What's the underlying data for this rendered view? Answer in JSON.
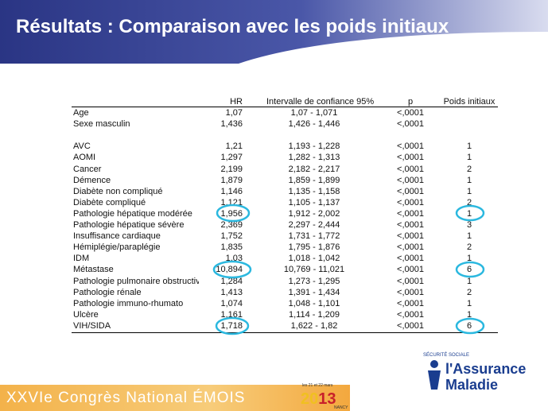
{
  "header": {
    "title": "Résultats : Comparaison avec les poids initiaux"
  },
  "table": {
    "columns": [
      "HR",
      "Intervalle de confiance 95%",
      "p",
      "Poids initiaux"
    ],
    "groups": [
      [
        [
          "Age",
          "1,07",
          "1,07  -  1,071",
          "<,0001"
        ],
        [
          "Sexe masculin",
          "1,436",
          "1,426  -  1,446",
          "<,0001"
        ]
      ],
      [
        [
          "AVC",
          "1,21",
          "1,193  -  1,228",
          "<,0001",
          "1"
        ],
        [
          "AOMI",
          "1,297",
          "1,282  -  1,313",
          "<,0001",
          "1"
        ],
        [
          "Cancer",
          "2,199",
          "2,182  -  2,217",
          "<,0001",
          "2"
        ],
        [
          "Démence",
          "1,879",
          "1,859  -  1,899",
          "<,0001",
          "1"
        ],
        [
          "Diabète non compliqué",
          "1,146",
          "1,135  -  1,158",
          "<,0001",
          "1"
        ],
        [
          "Diabète compliqué",
          "1,121",
          "1,105  -  1,137",
          "<,0001",
          "2"
        ],
        [
          "Pathologie hépatique modérée",
          "1,956",
          "1,912  -  2,002",
          "<,0001",
          "1"
        ],
        [
          "Pathologie hépatique sévère",
          "2,369",
          "2,297  -  2,444",
          "<,0001",
          "3"
        ],
        [
          "Insuffisance cardiaque",
          "1,752",
          "1,731  -  1,772",
          "<,0001",
          "1"
        ],
        [
          "Hémiplégie/paraplégie",
          "1,835",
          "1,795  -  1,876",
          "<,0001",
          "2"
        ],
        [
          "IDM",
          "1,03",
          "1,018  -  1,042",
          "<,0001",
          "1"
        ],
        [
          "Métastase",
          "10,894",
          "10,769  -  11,021",
          "<,0001",
          "6"
        ],
        [
          "Pathologie pulmonaire obstructiv",
          "1,284",
          "1,273  -  1,295",
          "<,0001",
          "1"
        ],
        [
          "Pathologie rénale",
          "1,413",
          "1,391  -  1,434",
          "<,0001",
          "2"
        ],
        [
          "Pathologie immuno-rhumato",
          "1,074",
          "1,048  -  1,101",
          "<,0001",
          "1"
        ],
        [
          "Ulcère",
          "1,161",
          "1,114  -  1,209",
          "<,0001",
          "1"
        ],
        [
          "VIH/SIDA",
          "1,718",
          "1,622  -  1,82",
          "<,0001",
          "6"
        ]
      ]
    ]
  },
  "footer": {
    "congress": "XXVIe Congrès National ÉMOIS",
    "dates": "les 21 et 22 mars",
    "year_a": "20",
    "year_b": "1",
    "year_c": "3",
    "city": "NANCY",
    "logo_arc": "SÉCURITÉ SOCIALE",
    "logo_line1": "l'Assurance",
    "logo_line2": "Maladie"
  }
}
